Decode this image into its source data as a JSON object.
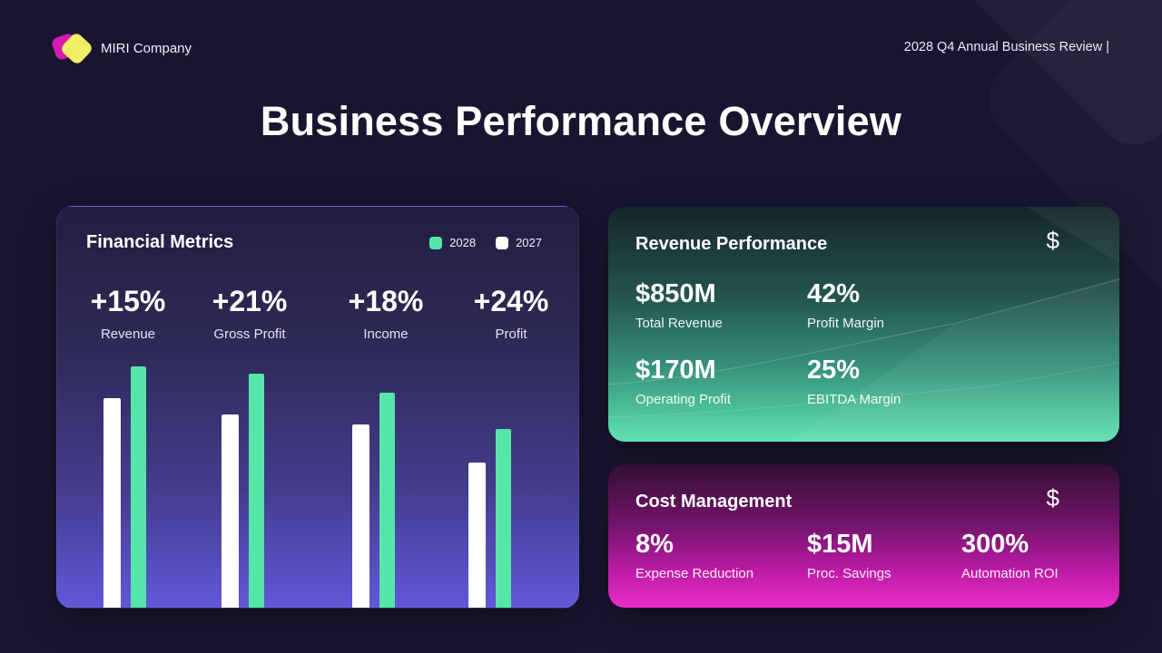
{
  "page": {
    "brand_name": "MIRI Company",
    "header_right": "2028 Q4 Annual Business Review |",
    "title": "Business Performance Overview",
    "background_color": "#191531"
  },
  "financial_metrics": {
    "title": "Financial Metrics",
    "legend": [
      {
        "label": "2028",
        "color": "#55e6a9"
      },
      {
        "label": "2027",
        "color": "#ffffff"
      }
    ],
    "metrics": [
      {
        "value": "+15%",
        "label": "Revenue"
      },
      {
        "value": "+21%",
        "label": "Gross Profit"
      },
      {
        "value": "+18%",
        "label": "Income"
      },
      {
        "value": "+24%",
        "label": "Profit"
      }
    ]
  },
  "chart_data": {
    "type": "bar",
    "title": "Financial Metrics",
    "categories": [
      "Revenue",
      "Gross Profit",
      "Income",
      "Profit"
    ],
    "series": [
      {
        "name": "2027",
        "color": "#ffffff",
        "values": [
          87,
          80,
          76,
          60
        ]
      },
      {
        "name": "2028",
        "color": "#55e6a9",
        "values": [
          100,
          97,
          89,
          74
        ]
      }
    ],
    "annotations": [
      "+15%",
      "+21%",
      "+18%",
      "+24%"
    ],
    "ylim": [
      0,
      100
    ],
    "grid": false,
    "legend_position": "top-right",
    "note": "no numeric axis shown; values are relative bar heights as percent of tallest bar"
  },
  "revenue_performance": {
    "title": "Revenue Performance",
    "icon": "$",
    "stats": [
      {
        "value": "$850M",
        "label": "Total Revenue"
      },
      {
        "value": "42%",
        "label": "Profit Margin"
      },
      {
        "value": "$170M",
        "label": "Operating Profit"
      },
      {
        "value": "25%",
        "label": "EBITDA Margin"
      }
    ]
  },
  "cost_management": {
    "title": "Cost Management",
    "icon": "$",
    "stats": [
      {
        "value": "8%",
        "label": "Expense Reduction"
      },
      {
        "value": "$15M",
        "label": "Proc. Savings"
      },
      {
        "value": "300%",
        "label": "Automation ROI"
      }
    ]
  },
  "colors": {
    "accent_green": "#55e6a9",
    "accent_magenta": "#ea2fc9",
    "logo_magenta": "#d31cb2",
    "logo_yellow": "#f2ee63",
    "financial_card_gradient": [
      "#221e40",
      "#6157d9"
    ],
    "revenue_card_gradient": [
      "#15252b",
      "#60e3b0"
    ],
    "cost_card_gradient": [
      "#311031",
      "#ea2fc9"
    ]
  }
}
